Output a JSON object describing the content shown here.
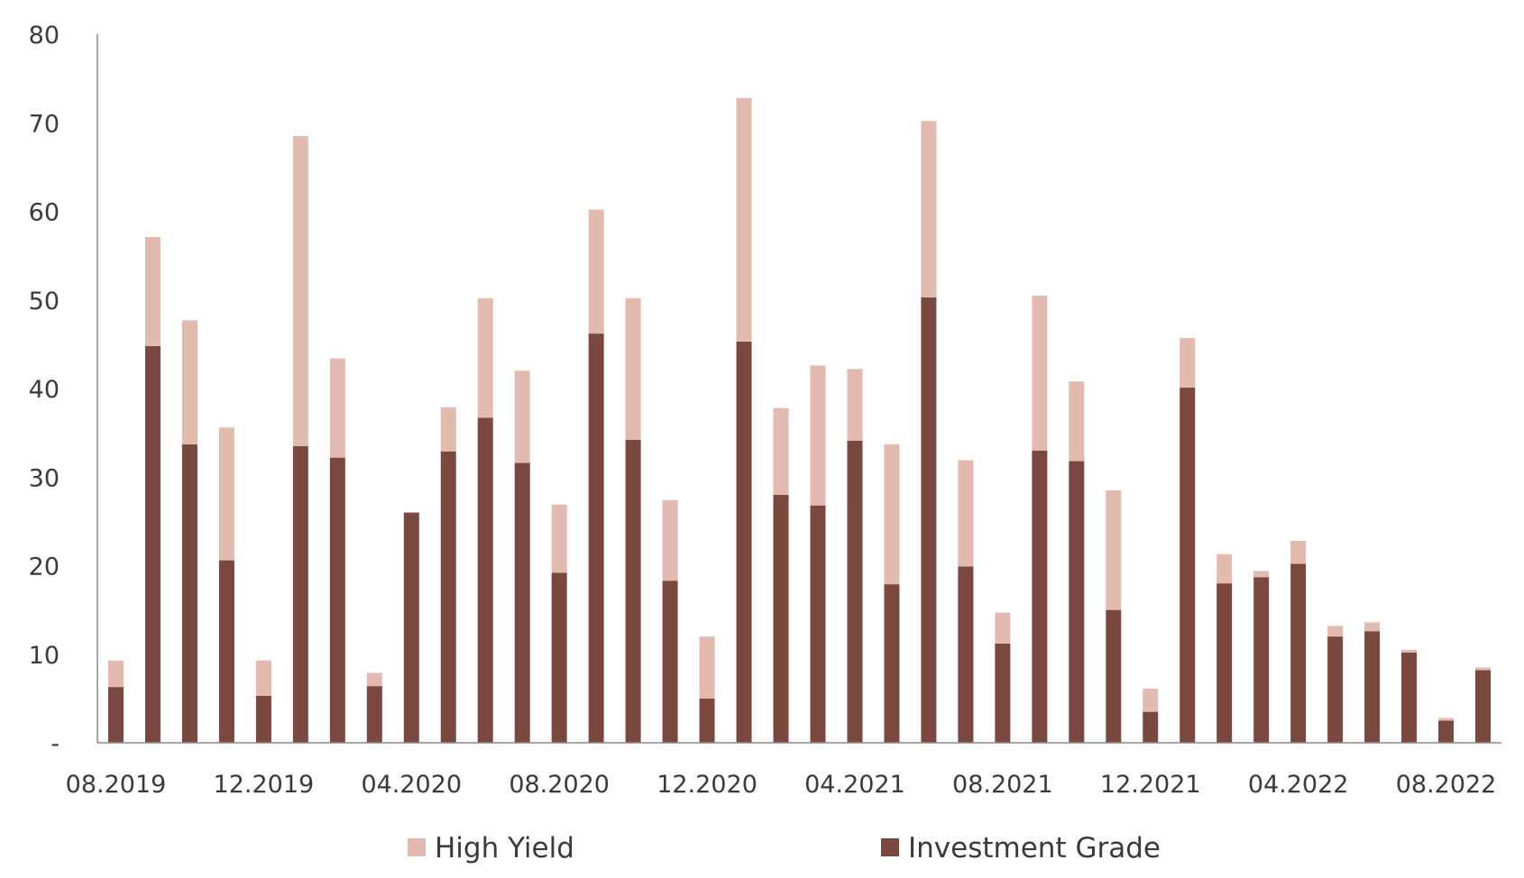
{
  "chart_data": {
    "type": "bar",
    "stacked": true,
    "colors": {
      "investment_grade": "#7b4840",
      "high_yield": "#e2bab0",
      "axis": "#888888"
    },
    "y_ticks": [
      "-",
      "10",
      "20",
      "30",
      "40",
      "50",
      "60",
      "70",
      "80"
    ],
    "ylim": [
      0,
      80
    ],
    "x_tick_labels": [
      {
        "index": 0,
        "label": "08.2019"
      },
      {
        "index": 4,
        "label": "12.2019"
      },
      {
        "index": 8,
        "label": "04.2020"
      },
      {
        "index": 12,
        "label": "08.2020"
      },
      {
        "index": 16,
        "label": "12.2020"
      },
      {
        "index": 20,
        "label": "04.2021"
      },
      {
        "index": 24,
        "label": "08.2021"
      },
      {
        "index": 28,
        "label": "12.2021"
      },
      {
        "index": 32,
        "label": "04.2022"
      },
      {
        "index": 36,
        "label": "08.2022"
      }
    ],
    "categories": [
      "08.2019",
      "09.2019",
      "10.2019",
      "11.2019",
      "12.2019",
      "01.2020",
      "02.2020",
      "03.2020",
      "04.2020",
      "05.2020",
      "06.2020",
      "07.2020",
      "08.2020",
      "09.2020",
      "10.2020",
      "11.2020",
      "12.2020",
      "01.2021",
      "02.2021",
      "03.2021",
      "04.2021",
      "05.2021",
      "06.2021",
      "07.2021",
      "08.2021",
      "09.2021",
      "10.2021",
      "11.2021",
      "12.2021",
      "01.2022",
      "02.2022",
      "03.2022",
      "04.2022",
      "05.2022",
      "06.2022",
      "07.2022",
      "08.2022",
      "09.2022"
    ],
    "series": [
      {
        "name": "Investment Grade",
        "values": [
          6.3,
          44.8,
          33.7,
          20.6,
          5.3,
          33.5,
          32.2,
          6.4,
          26.0,
          32.9,
          36.7,
          31.6,
          19.2,
          46.2,
          34.2,
          18.3,
          5.0,
          45.3,
          28.0,
          26.8,
          34.1,
          17.9,
          50.3,
          19.9,
          11.2,
          33.0,
          31.8,
          15.0,
          3.5,
          40.1,
          18.0,
          18.7,
          20.2,
          12.0,
          12.6,
          10.2,
          2.5,
          8.2
        ]
      },
      {
        "name": "High Yield",
        "values": [
          3.0,
          12.3,
          14.0,
          15.0,
          4.0,
          35.0,
          11.2,
          1.5,
          0.0,
          5.0,
          13.5,
          10.4,
          7.7,
          14.0,
          16.0,
          9.1,
          7.0,
          27.5,
          9.8,
          15.8,
          8.1,
          15.8,
          19.9,
          12.0,
          3.5,
          17.5,
          9.0,
          13.5,
          2.6,
          5.6,
          3.3,
          0.7,
          2.6,
          1.2,
          1.0,
          0.3,
          0.3,
          0.3
        ]
      }
    ],
    "legend": {
      "placement": "bottom",
      "items": [
        {
          "label": "High Yield",
          "key": "high_yield"
        },
        {
          "label": "Investment Grade",
          "key": "investment_grade"
        }
      ]
    }
  }
}
